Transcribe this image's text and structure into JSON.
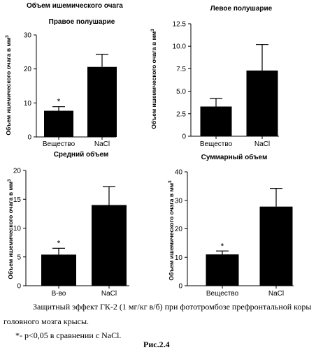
{
  "figure": {
    "main_title": "Объем ишемического очага",
    "caption_line1": "Защитный эффект ГК-2 (1 мг/кг в/б) при фототромбозе префронтальной коры",
    "caption_line2": "головного мозга крысы.",
    "caption_note": "*- p<0,05 в сравнении с NaCl.",
    "figure_label": "Рис.2.4",
    "colors": {
      "bar": "#000000",
      "axis": "#000000",
      "background": "#ffffff"
    }
  },
  "chart_data": [
    {
      "type": "bar",
      "title": "Правое полушарие",
      "ylabel": "Объем ишемического очага в мм³",
      "ylim": [
        0,
        30
      ],
      "yticks": [
        0,
        10,
        20,
        30
      ],
      "ytick_labels": [
        "0",
        "10",
        "20",
        "30"
      ],
      "categories": [
        "Вещество",
        "NaCl"
      ],
      "values": [
        7.7,
        20.6
      ],
      "errors": [
        1.2,
        3.7
      ],
      "significance": [
        "*",
        ""
      ],
      "grid": false
    },
    {
      "type": "bar",
      "title": "Левое полушарие",
      "ylabel": "Объем ишемического очага в мм³",
      "ylim": [
        0,
        12.5
      ],
      "yticks": [
        0,
        2.5,
        5,
        7.5,
        10,
        12.5
      ],
      "ytick_labels": [
        "0",
        "2.5",
        "5.0",
        "7.5",
        "10.0",
        "12.5"
      ],
      "categories": [
        "Вещество",
        "NaCl"
      ],
      "values": [
        3.3,
        7.3
      ],
      "errors": [
        0.9,
        2.9
      ],
      "significance": [
        "",
        ""
      ],
      "grid": false
    },
    {
      "type": "bar",
      "title": "Средний объем",
      "ylabel": "Объем ишемического очага в мм³",
      "ylim": [
        0,
        20
      ],
      "yticks": [
        0,
        5,
        10,
        15,
        20
      ],
      "ytick_labels": [
        "0",
        "5",
        "10",
        "15",
        "20"
      ],
      "categories": [
        "В-во",
        "NaCl"
      ],
      "values": [
        5.4,
        14.0
      ],
      "errors": [
        1.1,
        3.2
      ],
      "significance": [
        "*",
        ""
      ],
      "grid": false
    },
    {
      "type": "bar",
      "title": "Суммарный объем",
      "ylabel": "Объем ишемического очага в мм³",
      "ylim": [
        0,
        40
      ],
      "yticks": [
        0,
        10,
        20,
        30,
        40
      ],
      "ytick_labels": [
        "0",
        "10",
        "20",
        "30",
        "40"
      ],
      "categories": [
        "Вещество",
        "NaCl"
      ],
      "values": [
        11.0,
        27.8
      ],
      "errors": [
        1.2,
        6.4
      ],
      "significance": [
        "*",
        ""
      ],
      "grid": false
    }
  ]
}
